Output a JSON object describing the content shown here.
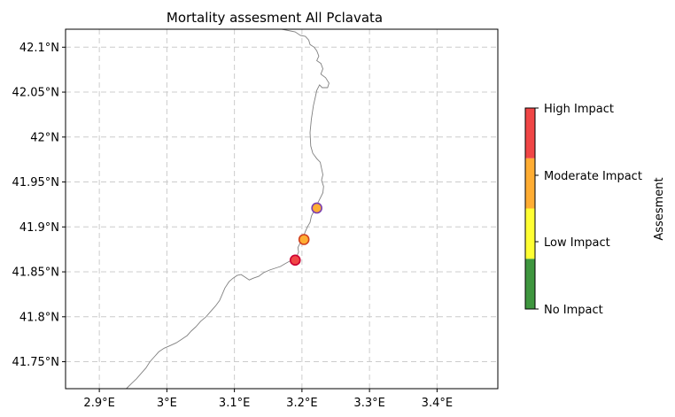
{
  "title": "Mortality assesment All Pclavata",
  "x_tick_labels": [
    "2.9°E",
    "3°E",
    "3.1°E",
    "3.2°E",
    "3.3°E",
    "3.4°E"
  ],
  "y_tick_labels": [
    "42.1°N",
    "42.05°N",
    "42°N",
    "41.95°N",
    "41.9°N",
    "41.85°N",
    "41.8°N",
    "41.75°N"
  ],
  "colorbar": {
    "label": "Assesment",
    "levels": [
      "No Impact",
      "Low Impact",
      "Moderate Impact",
      "High Impact"
    ],
    "colors": [
      "#3e963e",
      "#ffff33",
      "#ffad33",
      "#f04646"
    ]
  },
  "chart_data": {
    "type": "scatter",
    "title": "Mortality assesment All Pclavata",
    "xlim": [
      2.85,
      3.49
    ],
    "ylim": [
      41.72,
      42.12
    ],
    "x_ticks": [
      2.9,
      3.0,
      3.1,
      3.2,
      3.3,
      3.4
    ],
    "y_ticks": [
      42.1,
      42.05,
      42.0,
      41.95,
      41.9,
      41.85,
      41.8,
      41.75
    ],
    "grid": true,
    "coastline_color": "#808080",
    "points": [
      {
        "lon": 3.222,
        "lat": 41.921,
        "impact": "Moderate Impact",
        "edge": "#7a3fb0"
      },
      {
        "lon": 3.203,
        "lat": 41.886,
        "impact": "Moderate Impact",
        "edge": "#d04020"
      },
      {
        "lon": 3.19,
        "lat": 41.863,
        "impact": "High Impact",
        "edge": "#cc0033"
      }
    ],
    "coastline": [
      [
        3.17,
        42.12
      ],
      [
        3.19,
        42.117
      ],
      [
        3.198,
        42.113
      ],
      [
        3.205,
        42.112
      ],
      [
        3.21,
        42.108
      ],
      [
        3.212,
        42.103
      ],
      [
        3.218,
        42.1
      ],
      [
        3.222,
        42.096
      ],
      [
        3.225,
        42.09
      ],
      [
        3.222,
        42.085
      ],
      [
        3.228,
        42.082
      ],
      [
        3.231,
        42.076
      ],
      [
        3.228,
        42.07
      ],
      [
        3.235,
        42.066
      ],
      [
        3.24,
        42.06
      ],
      [
        3.238,
        42.055
      ],
      [
        3.23,
        42.055
      ],
      [
        3.226,
        42.058
      ],
      [
        3.222,
        42.052
      ],
      [
        3.22,
        42.045
      ],
      [
        3.217,
        42.035
      ],
      [
        3.214,
        42.02
      ],
      [
        3.212,
        42.005
      ],
      [
        3.213,
        41.99
      ],
      [
        3.216,
        41.982
      ],
      [
        3.222,
        41.976
      ],
      [
        3.227,
        41.972
      ],
      [
        3.229,
        41.965
      ],
      [
        3.231,
        41.958
      ],
      [
        3.229,
        41.952
      ],
      [
        3.232,
        41.945
      ],
      [
        3.231,
        41.938
      ],
      [
        3.227,
        41.932
      ],
      [
        3.223,
        41.926
      ],
      [
        3.218,
        41.918
      ],
      [
        3.214,
        41.912
      ],
      [
        3.212,
        41.905
      ],
      [
        3.208,
        41.9
      ],
      [
        3.205,
        41.895
      ],
      [
        3.202,
        41.889
      ],
      [
        3.198,
        41.883
      ],
      [
        3.194,
        41.877
      ],
      [
        3.195,
        41.872
      ],
      [
        3.192,
        41.867
      ],
      [
        3.188,
        41.862
      ],
      [
        3.182,
        41.862
      ],
      [
        3.175,
        41.859
      ],
      [
        3.168,
        41.856
      ],
      [
        3.16,
        41.854
      ],
      [
        3.152,
        41.852
      ],
      [
        3.143,
        41.849
      ],
      [
        3.136,
        41.845
      ],
      [
        3.128,
        41.843
      ],
      [
        3.122,
        41.841
      ],
      [
        3.116,
        41.844
      ],
      [
        3.11,
        41.847
      ],
      [
        3.104,
        41.846
      ],
      [
        3.098,
        41.843
      ],
      [
        3.092,
        41.839
      ],
      [
        3.086,
        41.832
      ],
      [
        3.082,
        41.825
      ],
      [
        3.078,
        41.818
      ],
      [
        3.072,
        41.812
      ],
      [
        3.065,
        41.806
      ],
      [
        3.058,
        41.8
      ],
      [
        3.05,
        41.795
      ],
      [
        3.043,
        41.789
      ],
      [
        3.036,
        41.784
      ],
      [
        3.03,
        41.779
      ],
      [
        3.022,
        41.775
      ],
      [
        3.014,
        41.771
      ],
      [
        3.005,
        41.768
      ],
      [
        2.996,
        41.765
      ],
      [
        2.988,
        41.761
      ],
      [
        2.982,
        41.756
      ],
      [
        2.975,
        41.75
      ],
      [
        2.969,
        41.743
      ],
      [
        2.962,
        41.737
      ],
      [
        2.955,
        41.731
      ],
      [
        2.948,
        41.726
      ],
      [
        2.94,
        41.72
      ]
    ]
  }
}
